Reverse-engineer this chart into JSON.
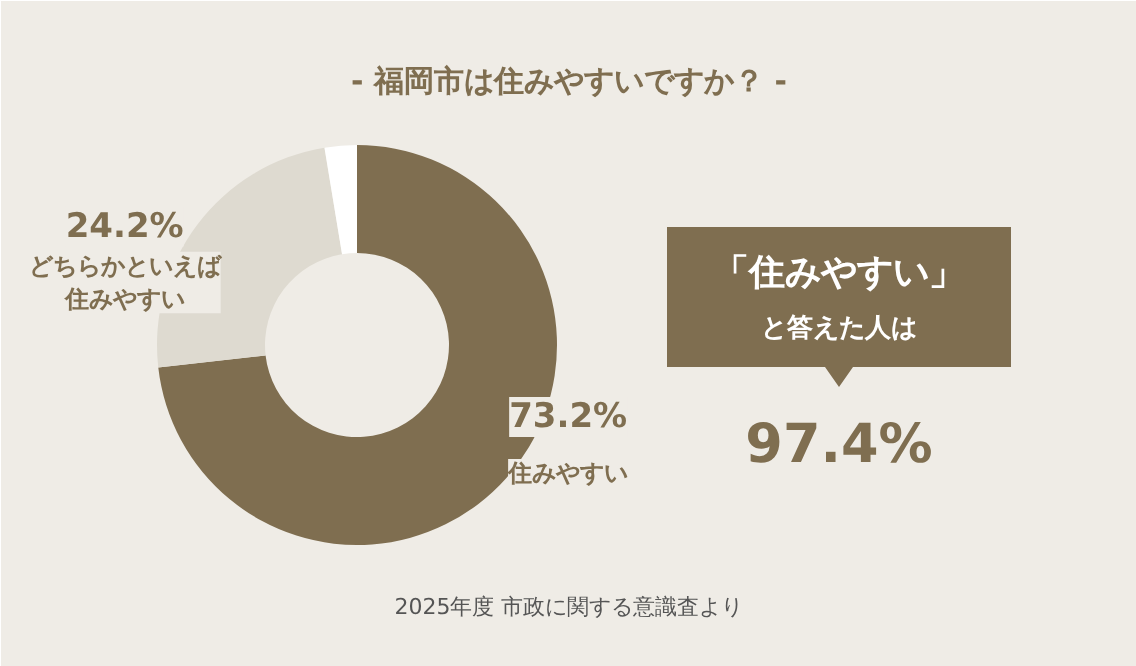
{
  "chart_data": {
    "type": "donut",
    "title": "- 福岡市は住みやすいですか？ -",
    "categories": [
      "住みやすい",
      "どちらかといえば住みやすい",
      null
    ],
    "values": [
      73.2,
      24.2,
      2.6
    ],
    "colors": [
      "#7f6e50",
      "#dedad0",
      "#ffffff"
    ],
    "value_labels": [
      "73.2%",
      "24.2%",
      null
    ],
    "annotations": [
      "「住みやすい」",
      "と答えた人は",
      "97.4%",
      "2025年度 市政に関する意識査より"
    ]
  }
}
